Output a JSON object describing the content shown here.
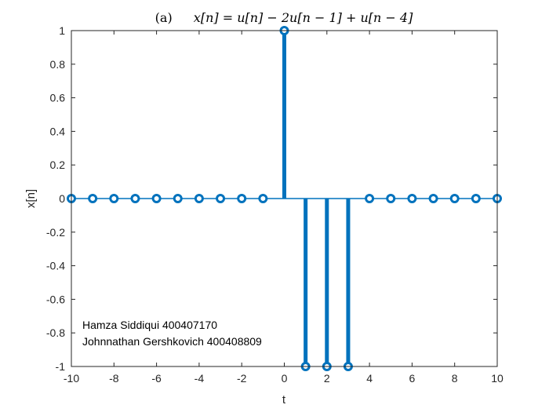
{
  "chart_data": {
    "type": "stem",
    "title_prefix": "(a)",
    "title_equation": "x[n] = u[n] − 2u[n − 1] + u[n − 4]",
    "xlabel": "t",
    "ylabel": "x[n]",
    "xlim": [
      -10,
      10
    ],
    "ylim": [
      -1,
      1
    ],
    "xticks": [
      "-10",
      "-8",
      "-6",
      "-4",
      "-2",
      "0",
      "2",
      "4",
      "6",
      "8",
      "10"
    ],
    "yticks": [
      "1",
      "0.8",
      "0.6",
      "0.4",
      "0.2",
      "0",
      "-0.2",
      "-0.4",
      "-0.6",
      "-0.8",
      "-1"
    ],
    "x": [
      -10,
      -9,
      -8,
      -7,
      -6,
      -5,
      -4,
      -3,
      -2,
      -1,
      0,
      1,
      2,
      3,
      4,
      5,
      6,
      7,
      8,
      9,
      10
    ],
    "y": [
      0,
      0,
      0,
      0,
      0,
      0,
      0,
      0,
      0,
      0,
      1,
      -1,
      -1,
      -1,
      0,
      0,
      0,
      0,
      0,
      0,
      0
    ],
    "color": "#0072BD",
    "annotations": [
      "Hamza Siddiqui 400407170",
      "Johnnathan Gershkovich 400408809"
    ]
  }
}
